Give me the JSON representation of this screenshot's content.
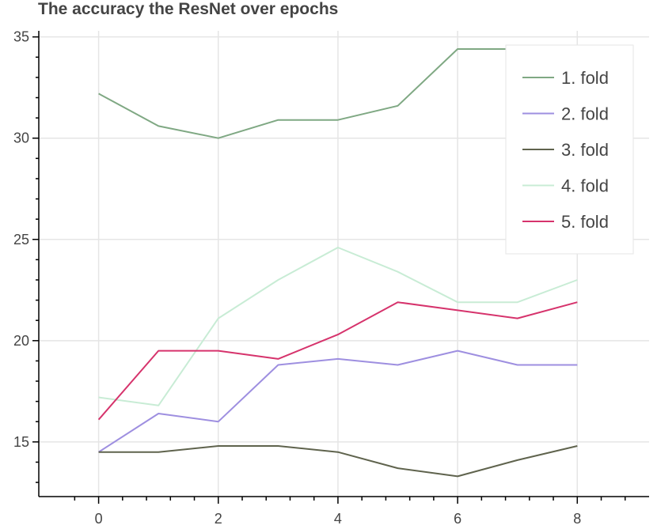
{
  "chart_data": {
    "type": "line",
    "title": "The accuracy the ResNet over epochs",
    "xlabel": "",
    "ylabel": "",
    "x": [
      0,
      1,
      2,
      3,
      4,
      5,
      6,
      7,
      8
    ],
    "xlim": [
      -1,
      9.2
    ],
    "ylim": [
      12.3,
      35.3
    ],
    "x_ticks": [
      0,
      2,
      4,
      6,
      8
    ],
    "y_ticks": [
      15,
      20,
      25,
      30,
      35
    ],
    "grid": true,
    "legend_position": "top-right",
    "series": [
      {
        "name": "1. fold",
        "color": "#7fa883",
        "values": [
          32.2,
          30.6,
          30.0,
          30.9,
          30.9,
          31.6,
          34.4,
          34.4,
          34.4
        ]
      },
      {
        "name": "2. fold",
        "color": "#9e8fe0",
        "values": [
          14.5,
          16.4,
          16.0,
          18.8,
          19.1,
          18.8,
          19.5,
          18.8,
          18.8
        ]
      },
      {
        "name": "3. fold",
        "color": "#5f634d",
        "values": [
          14.5,
          14.5,
          14.8,
          14.8,
          14.5,
          13.7,
          13.3,
          14.1,
          14.8
        ]
      },
      {
        "name": "4. fold",
        "color": "#c8ecd5",
        "values": [
          17.2,
          16.8,
          21.1,
          23.0,
          24.6,
          23.4,
          21.9,
          21.9,
          23.0
        ]
      },
      {
        "name": "5. fold",
        "color": "#d6336c",
        "values": [
          16.1,
          19.5,
          19.5,
          19.1,
          20.3,
          21.9,
          21.5,
          21.1,
          21.9
        ]
      }
    ]
  }
}
